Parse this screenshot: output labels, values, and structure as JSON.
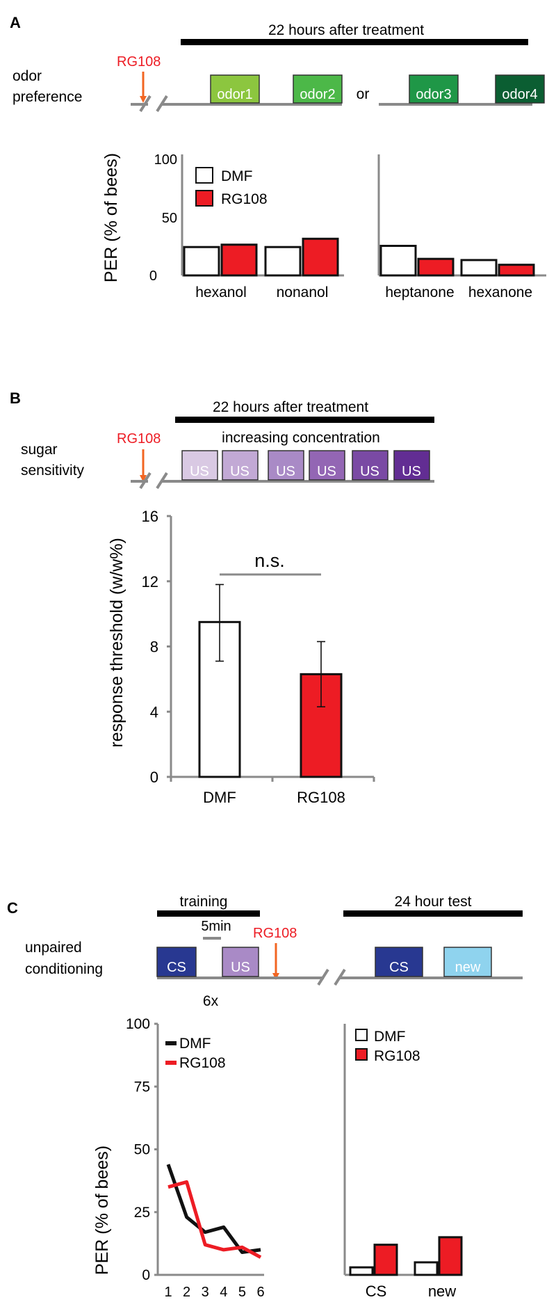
{
  "panels": {
    "A": {
      "letter": "A",
      "timeline": {
        "bar_label": "22 hours after treatment",
        "treatment": "RG108",
        "row_label_lines": [
          "odor",
          "preference"
        ],
        "separator_word": "or",
        "boxes": [
          {
            "label": "odor1",
            "color": "#8cc63f"
          },
          {
            "label": "odor2",
            "color": "#4cb848"
          },
          {
            "label": "odor3",
            "color": "#1f9747"
          },
          {
            "label": "odor4",
            "color": "#0b5e32"
          }
        ]
      }
    },
    "B": {
      "letter": "B",
      "timeline": {
        "bar_label": "22 hours after treatment",
        "treatment": "RG108",
        "row_label_lines": [
          "sugar",
          "sensitivity"
        ],
        "concentration_label": "increasing concentration",
        "boxes": [
          {
            "label": "US",
            "color": "#d9c9e3"
          },
          {
            "label": "US",
            "color": "#c2a9d5"
          },
          {
            "label": "US",
            "color": "#a98ac6"
          },
          {
            "label": "US",
            "color": "#9366b4"
          },
          {
            "label": "US",
            "color": "#7a4aa4"
          },
          {
            "label": "US",
            "color": "#622d93"
          }
        ]
      }
    },
    "C": {
      "letter": "C",
      "timeline": {
        "training_label": "training",
        "interval_label": "5min",
        "treatment": "RG108",
        "repeat_label": "6x",
        "test_label": "24 hour test",
        "row_label_lines": [
          "unpaired",
          "conditioning"
        ],
        "boxes": [
          {
            "label": "CS",
            "color": "#283891"
          },
          {
            "label": "US",
            "color": "#a98ac6"
          },
          {
            "label": "CS",
            "color": "#283891"
          },
          {
            "label": "new",
            "color": "#8fd3ee"
          }
        ]
      }
    }
  },
  "colors": {
    "dmf": "#ffffff",
    "rg108": "#ed1c24",
    "treatment_text": "#ed1c24",
    "arrow": "#f26522",
    "axis": "#8a8a8a",
    "outline": "#111111",
    "heavy_bar": "#000000"
  },
  "chart_data": [
    {
      "id": "A",
      "type": "bar",
      "ylabel": "PER (% of bees)",
      "yticks": [
        0,
        50,
        100
      ],
      "ylim": [
        0,
        100
      ],
      "legend": [
        "DMF",
        "RG108"
      ],
      "legend_position": "top-left",
      "groups_left": [
        "hexanol",
        "nonanol"
      ],
      "groups_right": [
        "heptanone",
        "hexanone"
      ],
      "series": [
        {
          "name": "DMF",
          "values": [
            24,
            24,
            25,
            13
          ]
        },
        {
          "name": "RG108",
          "values": [
            26,
            31,
            14,
            9
          ]
        }
      ]
    },
    {
      "id": "B",
      "type": "bar",
      "ylabel": "response threshold (w/w%)",
      "categories": [
        "DMF",
        "RG108"
      ],
      "values": [
        9.5,
        6.3
      ],
      "error": [
        [
          7.1,
          11.8
        ],
        [
          4.3,
          8.3
        ]
      ],
      "yticks": [
        0,
        4,
        8,
        12,
        16
      ],
      "ylim": [
        0,
        16
      ],
      "annotation": "n.s."
    },
    {
      "id": "C-training",
      "type": "line",
      "ylabel": "PER (% of bees)",
      "yticks": [
        0,
        25,
        50,
        75,
        100
      ],
      "ylim": [
        0,
        100
      ],
      "x": [
        1,
        2,
        3,
        4,
        5,
        6
      ],
      "legend": [
        "DMF",
        "RG108"
      ],
      "legend_position": "top-left",
      "series": [
        {
          "name": "DMF",
          "values": [
            44,
            23,
            17,
            19,
            9,
            10
          ]
        },
        {
          "name": "RG108",
          "values": [
            35,
            37,
            12,
            10,
            11,
            7
          ]
        }
      ]
    },
    {
      "id": "C-test",
      "type": "bar",
      "categories": [
        "CS",
        "new"
      ],
      "ylim": [
        0,
        100
      ],
      "legend": [
        "DMF",
        "RG108"
      ],
      "legend_position": "top-left",
      "series": [
        {
          "name": "DMF",
          "values": [
            3,
            5
          ]
        },
        {
          "name": "RG108",
          "values": [
            12,
            15
          ]
        }
      ]
    }
  ]
}
